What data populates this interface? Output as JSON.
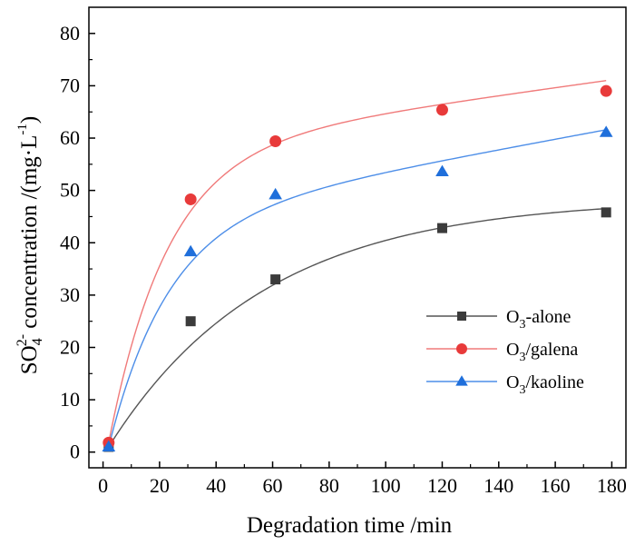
{
  "chart_data": {
    "type": "scatter",
    "title": "",
    "xlabel": "Degradation time /min",
    "ylabel": {
      "prefix": "SO",
      "sub": "4",
      "sup": "2-",
      "middle": " concentration /(mg",
      "dot": "·",
      "unit": "L",
      "unit_sup": "-1",
      "suffix": ")"
    },
    "xlim": [
      -5,
      185
    ],
    "ylim": [
      -3,
      85
    ],
    "xticks": [
      0,
      20,
      40,
      60,
      80,
      100,
      120,
      140,
      160,
      180
    ],
    "yticks": [
      0,
      10,
      20,
      30,
      40,
      50,
      60,
      70,
      80
    ],
    "grid": false,
    "legend_position": "lower-right",
    "series": [
      {
        "name": "O3-alone",
        "label_main": "O",
        "label_sub": "3",
        "label_rest": "-alone",
        "marker": "square",
        "marker_color": "#3b3b3b",
        "line_color": "#555555",
        "x": [
          2,
          31,
          61,
          120,
          178
        ],
        "y": [
          1.0,
          25.0,
          33.0,
          42.8,
          45.8
        ],
        "fit": {
          "a": 47.5,
          "k": 0.0181
        }
      },
      {
        "name": "O3/galena",
        "label_main": "O",
        "label_sub": "3",
        "label_rest": "/galena",
        "marker": "circle",
        "marker_color": "#e83a3a",
        "line_color": "#f07a7a",
        "x": [
          2,
          31,
          61,
          120,
          178
        ],
        "y": [
          1.8,
          48.3,
          59.4,
          65.4,
          69.0
        ],
        "fit": {
          "a": 56.0,
          "k": 0.048,
          "c": 0.075
        }
      },
      {
        "name": "O3/kaoline",
        "label_main": "O",
        "label_sub": "3",
        "label_rest": "/kaoline",
        "marker": "triangle",
        "marker_color": "#1f6fdb",
        "line_color": "#4d8ee8",
        "x": [
          2,
          31,
          61,
          120,
          178
        ],
        "y": [
          1.0,
          38.3,
          49.2,
          53.6,
          61.1
        ],
        "fit": {
          "a": 43.0,
          "k": 0.048,
          "c": 0.1
        }
      }
    ]
  }
}
